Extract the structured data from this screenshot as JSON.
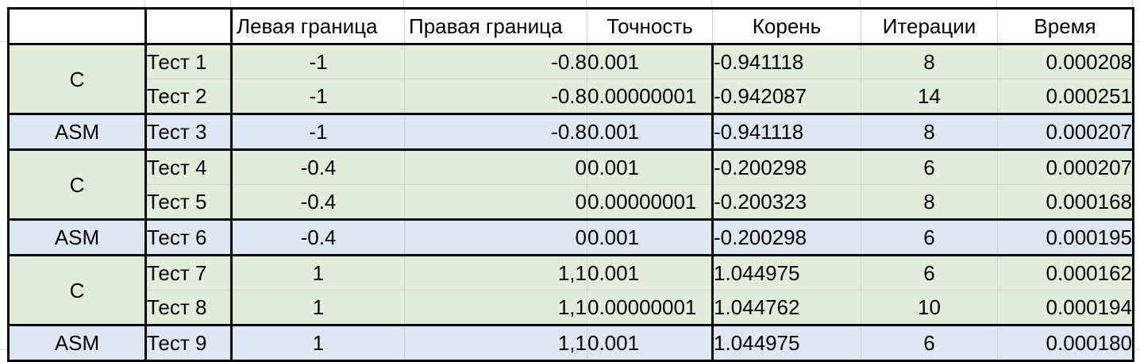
{
  "table": {
    "headers": [
      "",
      "",
      "Левая граница",
      "Правая граница",
      "Точность",
      "Корень",
      "Итерации",
      "Время"
    ],
    "rows": [
      {
        "lang": "C",
        "test": "Тест 1",
        "left": "-1",
        "right": "-0.8",
        "eps": "0.001",
        "root": "-0.941118",
        "iter": "8",
        "time": "0.000208",
        "group": "c"
      },
      {
        "lang": "",
        "test": "Тест 2",
        "left": "-1",
        "right": "-0.8",
        "eps": "0.00000001",
        "root": "-0.942087",
        "iter": "14",
        "time": "0.000251",
        "group": "c"
      },
      {
        "lang": "ASM",
        "test": "Тест 3",
        "left": "-1",
        "right": "-0.8",
        "eps": "0.001",
        "root": "-0.941118",
        "iter": "8",
        "time": "0.000207",
        "group": "asm"
      },
      {
        "lang": "C",
        "test": "Тест 4",
        "left": "-0.4",
        "right": "0",
        "eps": "0.001",
        "root": "-0.200298",
        "iter": "6",
        "time": "0.000207",
        "group": "c"
      },
      {
        "lang": "",
        "test": "Тест 5",
        "left": "-0.4",
        "right": "0",
        "eps": "0.00000001",
        "root": "-0.200323",
        "iter": "8",
        "time": "0.000168",
        "group": "c"
      },
      {
        "lang": "ASM",
        "test": "Тест 6",
        "left": "-0.4",
        "right": "0",
        "eps": "0.001",
        "root": "-0.200298",
        "iter": "6",
        "time": "0.000195",
        "group": "asm"
      },
      {
        "lang": "C",
        "test": "Тест 7",
        "left": "1",
        "right": "1,1",
        "eps": "0.001",
        "root": "1.044975",
        "iter": "6",
        "time": "0.000162",
        "group": "c"
      },
      {
        "lang": "",
        "test": "Тест 8",
        "left": "1",
        "right": "1,1",
        "eps": "0.00000001",
        "root": "1.044762",
        "iter": "10",
        "time": "0.000194",
        "group": "c"
      },
      {
        "lang": "ASM",
        "test": "Тест 9",
        "left": "1",
        "right": "1,1",
        "eps": "0.001",
        "root": "1.044975",
        "iter": "6",
        "time": "0.000180",
        "group": "asm"
      }
    ]
  },
  "colors": {
    "c_row": "#e3ecd8",
    "asm_row": "#dce7f3",
    "border": "#000000"
  }
}
